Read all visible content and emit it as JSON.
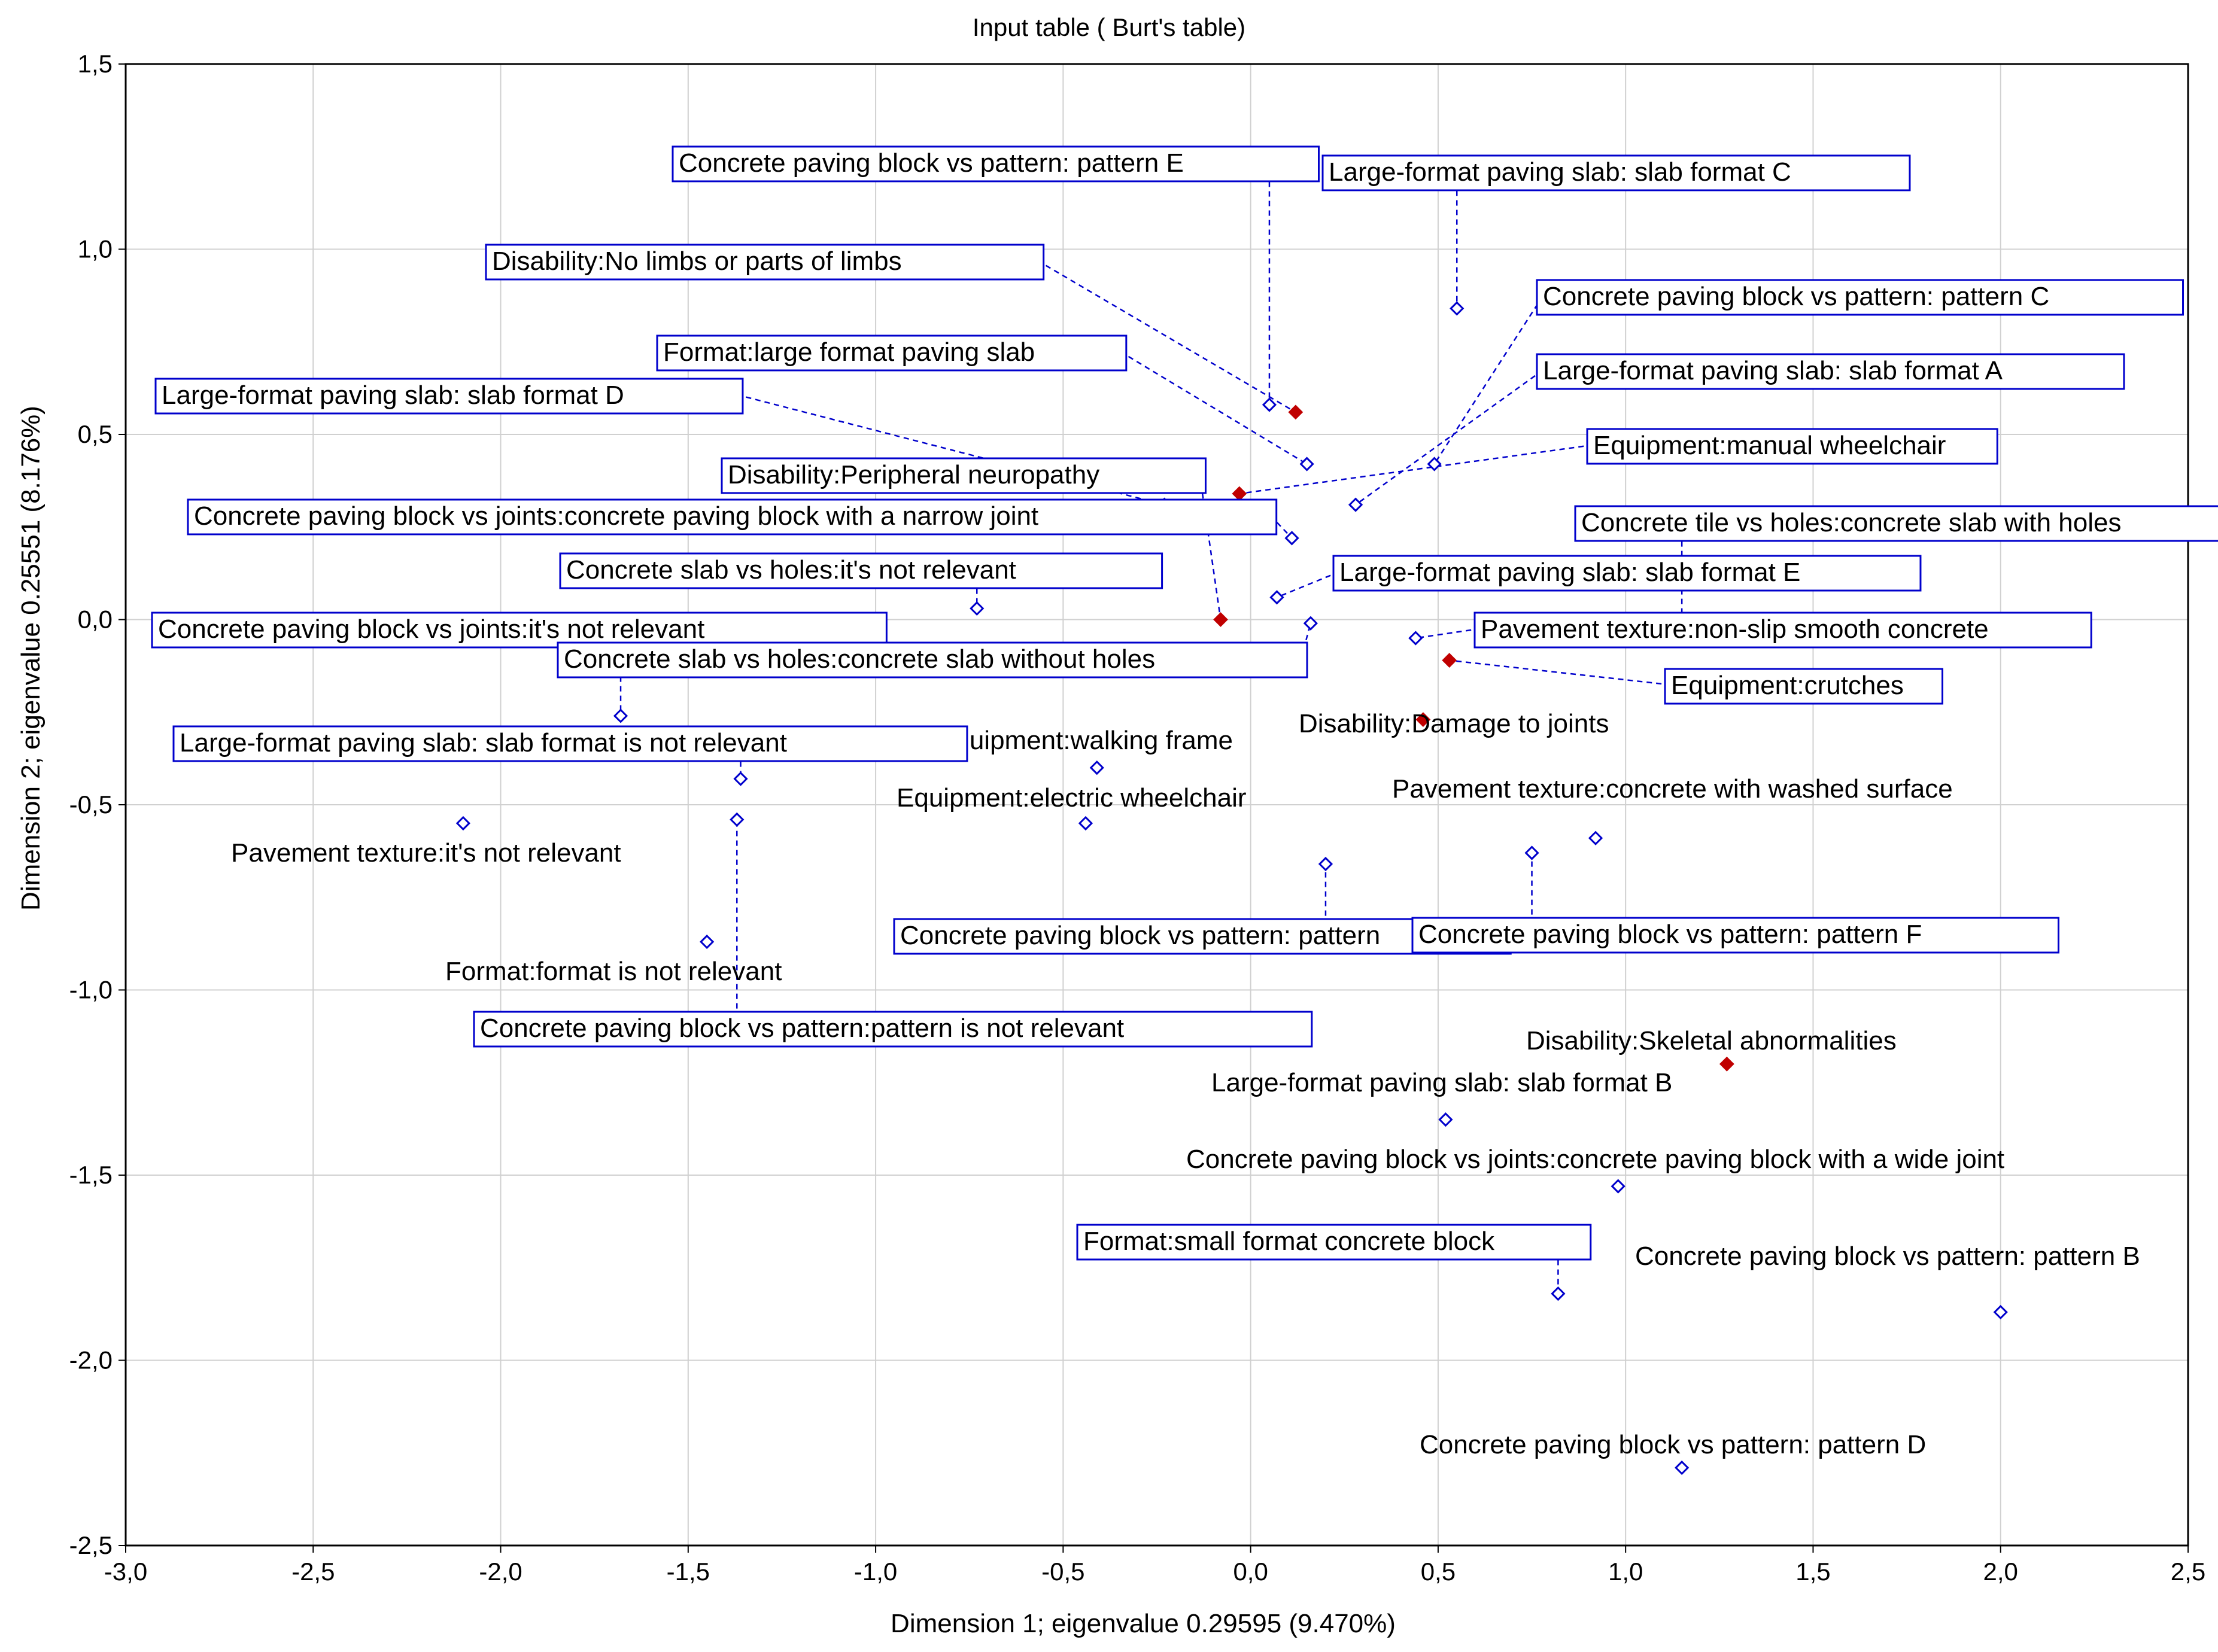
{
  "chart_data": {
    "type": "scatter",
    "title": "Input table ( Burt's table)",
    "xlabel": "Dimension 1; eigenvalue 0.29595 (9.470%)",
    "ylabel": "Dimension 2; eigenvalue 0.25551 (8.176%)",
    "xlim": [
      -3.0,
      2.5
    ],
    "ylim": [
      -2.5,
      1.5
    ],
    "xticks": [
      -3.0,
      -2.5,
      -2.0,
      -1.5,
      -1.0,
      -0.5,
      0.0,
      0.5,
      1.0,
      1.5,
      2.0,
      2.5
    ],
    "xtick_labels": [
      "-3,0",
      "-2,5",
      "-2,0",
      "-1,5",
      "-1,0",
      "-0,5",
      "0,0",
      "0,5",
      "1,0",
      "1,5",
      "2,0",
      "2,5"
    ],
    "yticks": [
      1.5,
      1.0,
      0.5,
      0.0,
      -0.5,
      -1.0,
      -1.5,
      -2.0,
      -2.5
    ],
    "ytick_labels": [
      "1,5",
      "1,0",
      "0,5",
      "0,0",
      "-0,5",
      "-1,0",
      "-1,5",
      "-2,0",
      "-2,5"
    ],
    "grid": true,
    "colors": {
      "category_point": "#0000cc",
      "disability_point": "#c00000",
      "label_box": "#0000cc",
      "grid": "#d0d0d0",
      "leader": "#0000cc"
    },
    "points": [
      {
        "label": "Concrete paving block vs pattern: pattern E",
        "x": 0.05,
        "y": 0.58,
        "kind": "category",
        "boxed": true
      },
      {
        "label": "Large-format paving slab: slab format C",
        "x": 0.55,
        "y": 0.84,
        "kind": "category",
        "boxed": true
      },
      {
        "label": "Disability:No limbs or parts of limbs",
        "x": 0.12,
        "y": 0.56,
        "kind": "disability",
        "boxed": true
      },
      {
        "label": "Concrete paving block vs pattern: pattern C",
        "x": 0.49,
        "y": 0.42,
        "kind": "category",
        "boxed": true
      },
      {
        "label": "Format:large format paving slab",
        "x": 0.15,
        "y": 0.42,
        "kind": "category",
        "boxed": true
      },
      {
        "label": "Large-format paving slab: slab format A",
        "x": 0.28,
        "y": 0.31,
        "kind": "category",
        "boxed": true
      },
      {
        "label": "Large-format paving slab: slab format D",
        "x": -0.23,
        "y": 0.31,
        "kind": "category",
        "boxed": true
      },
      {
        "label": "Equipment:manual wheelchair",
        "x": -0.03,
        "y": 0.34,
        "kind": "disability",
        "boxed": true
      },
      {
        "label": "Disability:Peripheral neuropathy",
        "x": -0.08,
        "y": 0.0,
        "kind": "disability",
        "boxed": true
      },
      {
        "label": "Concrete paving block vs joints:concrete paving block with a narrow joint",
        "x": 0.11,
        "y": 0.22,
        "kind": "category",
        "boxed": true
      },
      {
        "label": "Concrete tile vs holes:concrete slab with holes",
        "x": 1.15,
        "y": 0.0,
        "kind": "category",
        "boxed": true
      },
      {
        "label": "Concrete slab vs holes:it's not relevant",
        "x": -0.73,
        "y": 0.03,
        "kind": "category",
        "boxed": true
      },
      {
        "label": "Large-format paving slab: slab format E",
        "x": 0.07,
        "y": 0.06,
        "kind": "category",
        "boxed": true
      },
      {
        "label": "Concrete paving block vs joints:it's not relevant",
        "x": -1.68,
        "y": -0.26,
        "kind": "category",
        "boxed": true
      },
      {
        "label": "Concrete slab vs holes:concrete slab without holes",
        "x": 0.16,
        "y": -0.01,
        "kind": "category",
        "boxed": true
      },
      {
        "label": "Pavement texture:non-slip smooth concrete",
        "x": 0.44,
        "y": -0.05,
        "kind": "category",
        "boxed": true
      },
      {
        "label": "Equipment:crutches",
        "x": 0.53,
        "y": -0.11,
        "kind": "disability",
        "boxed": true
      },
      {
        "label": "Disability:Damage to joints",
        "x": 0.46,
        "y": -0.27,
        "kind": "disability",
        "boxed": false
      },
      {
        "label": "Equipment:walking frame",
        "x": -0.41,
        "y": -0.4,
        "kind": "category",
        "boxed": false
      },
      {
        "label": "Large-format paving slab: slab format is not relevant",
        "x": -1.36,
        "y": -0.43,
        "kind": "category",
        "boxed": true
      },
      {
        "label": "Equipment:electric wheelchair",
        "x": -0.44,
        "y": -0.55,
        "kind": "category",
        "boxed": false
      },
      {
        "label": "Pavement texture:it's not relevant",
        "x": -2.1,
        "y": -0.55,
        "kind": "category",
        "boxed": false
      },
      {
        "label": "Pavement texture:concrete with washed surface",
        "x": 0.92,
        "y": -0.59,
        "kind": "category",
        "boxed": false
      },
      {
        "label": "Concrete paving block vs pattern: pattern",
        "x": 0.2,
        "y": -0.66,
        "kind": "category",
        "boxed": true
      },
      {
        "label": "Concrete paving block vs pattern: pattern F",
        "x": 0.75,
        "y": -0.63,
        "kind": "category",
        "boxed": true
      },
      {
        "label": "Concrete paving block vs pattern:pattern is not relevant",
        "x": -1.37,
        "y": -0.54,
        "kind": "category",
        "boxed": true
      },
      {
        "label": "Format:format is not relevant",
        "x": -1.45,
        "y": -0.87,
        "kind": "category",
        "boxed": false
      },
      {
        "label": "Disability:Skeletal abnormalities",
        "x": 1.27,
        "y": -1.2,
        "kind": "disability",
        "boxed": false
      },
      {
        "label": "Large-format paving slab: slab format B",
        "x": 0.52,
        "y": -1.35,
        "kind": "category",
        "boxed": false
      },
      {
        "label": "Concrete paving block vs joints:concrete paving block with a wide joint",
        "x": 0.98,
        "y": -1.53,
        "kind": "category",
        "boxed": false
      },
      {
        "label": "Format:small format concrete block",
        "x": 0.82,
        "y": -1.82,
        "kind": "category",
        "boxed": true
      },
      {
        "label": "Concrete paving block vs pattern: pattern B",
        "x": 2.0,
        "y": -1.87,
        "kind": "category",
        "boxed": false
      },
      {
        "label": "Concrete paving block vs pattern: pattern D",
        "x": 1.15,
        "y": -2.29,
        "kind": "category",
        "boxed": false
      }
    ]
  }
}
